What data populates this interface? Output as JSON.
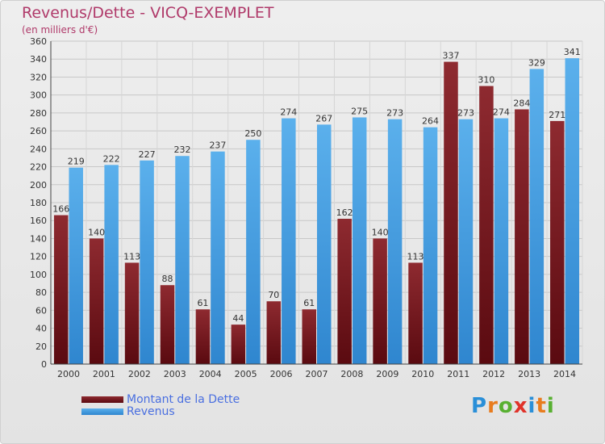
{
  "header": {
    "title": "Revenus/Dette - VICQ-EXEMPLET",
    "subtitle": "(en milliers d'€)"
  },
  "logo": {
    "text": "Proxiti",
    "colors": [
      "#2a8fd8",
      "#e87c1e",
      "#58b031",
      "#e0332a",
      "#2a8fd8",
      "#e87c1e",
      "#58b031"
    ]
  },
  "chart_data": {
    "type": "bar",
    "title": "Revenus/Dette - VICQ-EXEMPLET",
    "ylabel": "(en milliers d'€)",
    "xlabel": "",
    "categories": [
      "2000",
      "2001",
      "2002",
      "2003",
      "2004",
      "2005",
      "2006",
      "2007",
      "2008",
      "2009",
      "2010",
      "2011",
      "2012",
      "2013",
      "2014"
    ],
    "ylim": [
      0,
      360
    ],
    "ytick_step": 20,
    "grid": true,
    "legend_position": "bottom-left",
    "series": [
      {
        "name": "Montant de la Dette",
        "color": "#7a1f24",
        "values": [
          166,
          140,
          113,
          88,
          61,
          44,
          70,
          61,
          162,
          140,
          113,
          337,
          310,
          284,
          271
        ]
      },
      {
        "name": "Revenus",
        "color": "#4aa3e6",
        "values": [
          219,
          222,
          227,
          232,
          237,
          250,
          274,
          267,
          275,
          273,
          264,
          273,
          274,
          329,
          341
        ]
      }
    ]
  }
}
